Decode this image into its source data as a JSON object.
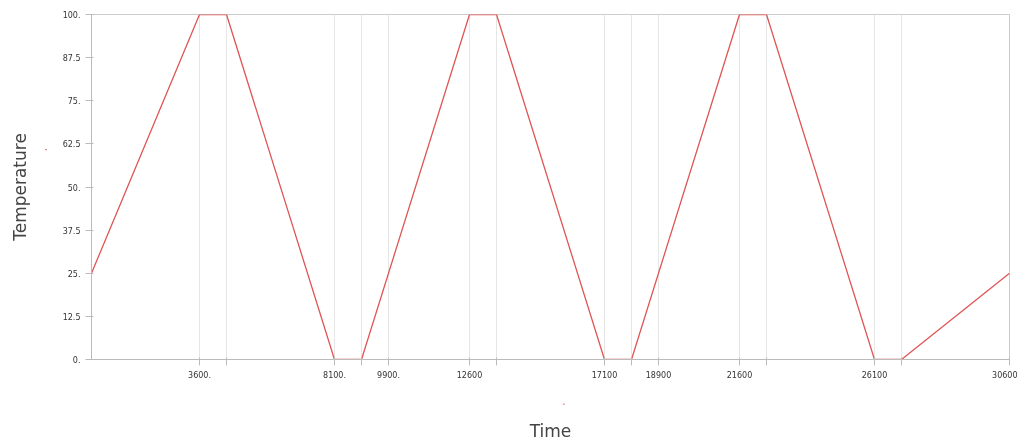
{
  "chart_data": {
    "type": "line",
    "xlabel": "Time",
    "ylabel": "Temperature",
    "x": [
      0,
      3600,
      4500,
      8100,
      9000,
      12600,
      13500,
      17100,
      18000,
      21600,
      22500,
      26100,
      27000,
      30600
    ],
    "series": [
      {
        "color": "#e05555",
        "values": [
          25,
          100,
          100,
          0,
          0,
          100,
          100,
          0,
          0,
          100,
          100,
          0,
          0,
          25
        ]
      }
    ],
    "xlim": [
      0,
      30600
    ],
    "ylim": [
      0,
      100
    ],
    "xticks": [
      {
        "value": 3600,
        "label": "3600."
      },
      {
        "value": 4500,
        "label": null
      },
      {
        "value": 8100,
        "label": "8100."
      },
      {
        "value": 9000,
        "label": null
      },
      {
        "value": 9900,
        "label": "9900."
      },
      {
        "value": 12600,
        "label": "12600"
      },
      {
        "value": 13500,
        "label": null
      },
      {
        "value": 17100,
        "label": "17100"
      },
      {
        "value": 18000,
        "label": null
      },
      {
        "value": 18900,
        "label": "18900"
      },
      {
        "value": 21600,
        "label": "21600"
      },
      {
        "value": 22500,
        "label": null
      },
      {
        "value": 26100,
        "label": "26100"
      },
      {
        "value": 27000,
        "label": null
      },
      {
        "value": 30600,
        "label": "30600"
      }
    ],
    "yticks": [
      {
        "value": 0,
        "label": "0."
      },
      12.5,
      {
        "value": 25,
        "label": "25."
      },
      37.5,
      {
        "value": 50,
        "label": "50."
      },
      62.5,
      {
        "value": 75,
        "label": "75."
      },
      87.5,
      {
        "value": 100,
        "label": "100."
      }
    ],
    "grid": "x",
    "marker": "none",
    "line_style": "solid"
  }
}
